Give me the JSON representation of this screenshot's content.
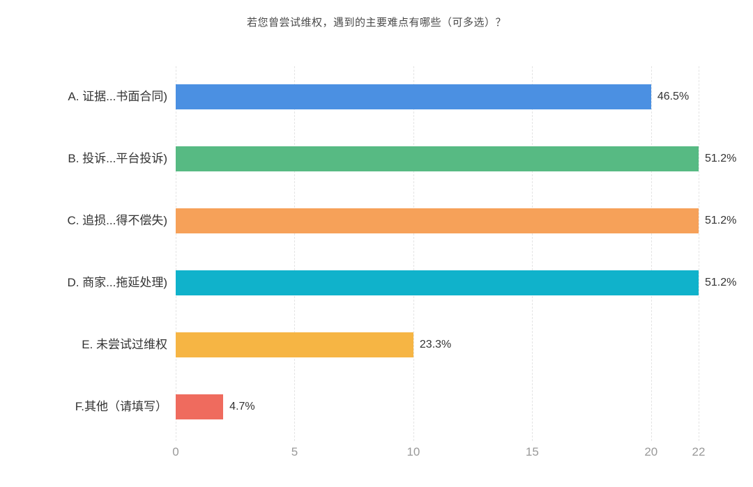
{
  "chart_data": {
    "type": "bar",
    "orientation": "horizontal",
    "title": "若您曾尝试维权，遇到的主要难点有哪些（可多选）？",
    "categories": [
      "A. 证据...书面合同)",
      "B. 投诉...平台投诉)",
      "C. 追损...得不偿失)",
      "D. 商家...拖延处理)",
      "E. 未尝试过维权",
      "F.其他（请填写）"
    ],
    "values": [
      20,
      22,
      22,
      22,
      10,
      2
    ],
    "percent_labels": [
      "46.5%",
      "51.2%",
      "51.2%",
      "51.2%",
      "23.3%",
      "4.7%"
    ],
    "bar_colors": [
      "#4B90E2",
      "#57BA83",
      "#F6A159",
      "#10B2CB",
      "#F6B544",
      "#EF6B5E"
    ],
    "x_ticks": [
      0,
      5,
      10,
      15,
      20,
      22
    ],
    "xlim": [
      0,
      22
    ],
    "xlabel": "",
    "ylabel": "",
    "grid": "dashed-vertical-gridlines",
    "legend": "none"
  },
  "colors": {
    "background": "#ffffff",
    "title_text": "#4a4a4a",
    "category_text": "#333333",
    "value_text": "#333333",
    "axis_tick_text": "#999999",
    "gridline": "#e4e4e4"
  }
}
